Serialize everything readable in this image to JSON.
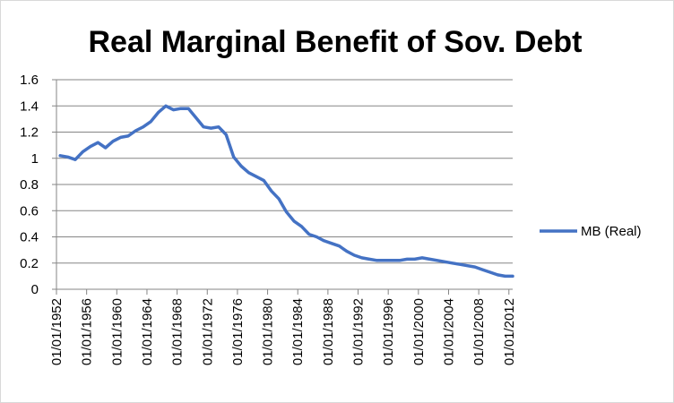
{
  "chart_data": {
    "type": "line",
    "title": "Real Marginal Benefit of Sov. Debt",
    "xlabel": "",
    "ylabel": "",
    "ylim": [
      0,
      1.6
    ],
    "yticks": [
      "0",
      "0.2",
      "0.4",
      "0.6",
      "0.8",
      "1",
      "1.2",
      "1.4",
      "1.6"
    ],
    "xticks": [
      "01/01/1952",
      "01/01/1956",
      "01/01/1960",
      "01/01/1964",
      "01/01/1968",
      "01/01/1972",
      "01/01/1976",
      "01/01/1980",
      "01/01/1984",
      "01/01/1988",
      "01/01/1992",
      "01/01/1996",
      "01/01/2000",
      "01/01/2004",
      "01/01/2008",
      "01/01/2012"
    ],
    "grid": "horizontal",
    "legend_position": "right",
    "x": [
      "1952",
      "1953",
      "1954",
      "1955",
      "1956",
      "1957",
      "1958",
      "1959",
      "1960",
      "1961",
      "1962",
      "1963",
      "1964",
      "1965",
      "1966",
      "1967",
      "1968",
      "1969",
      "1970",
      "1971",
      "1972",
      "1973",
      "1974",
      "1975",
      "1976",
      "1977",
      "1978",
      "1979",
      "1980",
      "1981",
      "1982",
      "1983",
      "1984",
      "1985",
      "1986",
      "1987",
      "1988",
      "1989",
      "1990",
      "1991",
      "1992",
      "1993",
      "1994",
      "1995",
      "1996",
      "1997",
      "1998",
      "1999",
      "2000",
      "2001",
      "2002",
      "2003",
      "2004",
      "2005",
      "2006",
      "2007",
      "2008",
      "2009",
      "2010",
      "2011",
      "2012"
    ],
    "series": [
      {
        "name": "MB (Real)",
        "color": "#4472C4",
        "values": [
          1.02,
          1.01,
          0.99,
          1.05,
          1.09,
          1.12,
          1.08,
          1.13,
          1.16,
          1.17,
          1.21,
          1.24,
          1.28,
          1.35,
          1.4,
          1.37,
          1.38,
          1.38,
          1.31,
          1.24,
          1.23,
          1.24,
          1.18,
          1.01,
          0.94,
          0.89,
          0.86,
          0.83,
          0.75,
          0.69,
          0.59,
          0.52,
          0.48,
          0.42,
          0.4,
          0.37,
          0.35,
          0.33,
          0.29,
          0.26,
          0.24,
          0.23,
          0.22,
          0.22,
          0.22,
          0.22,
          0.23,
          0.23,
          0.24,
          0.23,
          0.22,
          0.21,
          0.2,
          0.19,
          0.18,
          0.17,
          0.15,
          0.13,
          0.11,
          0.1,
          0.1
        ]
      }
    ]
  }
}
